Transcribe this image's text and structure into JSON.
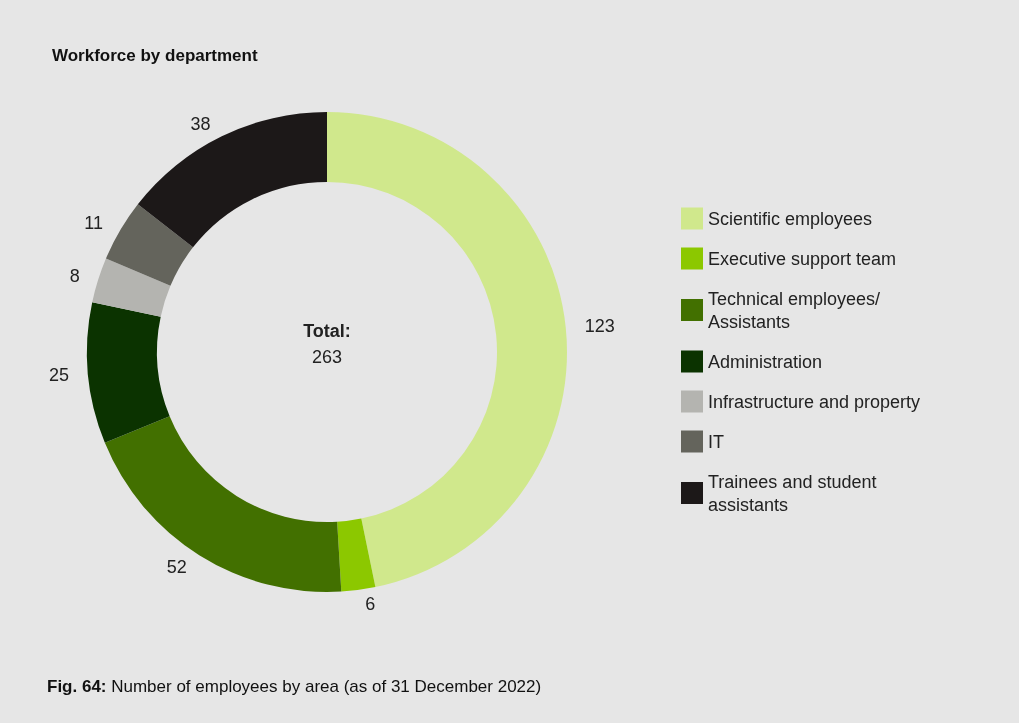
{
  "chart_data": {
    "type": "donut",
    "title": "Workforce by department",
    "categories": [
      "Scientific employees",
      "Executive support team",
      "Technical employees/ Assistants",
      "Administration",
      "Infrastructure and property",
      "IT",
      "Trainees and student assistants"
    ],
    "values": [
      123,
      6,
      52,
      25,
      8,
      11,
      38
    ],
    "colors": [
      "#d0e88c",
      "#8cc800",
      "#427000",
      "#0b3300",
      "#b4b4b0",
      "#64645c",
      "#1c1818"
    ],
    "data_labels": true,
    "legend": "right",
    "annotations": [
      "Total:\n263",
      "Fig. 64: Number of employees by area (as of 31 December 2022)"
    ]
  }
}
